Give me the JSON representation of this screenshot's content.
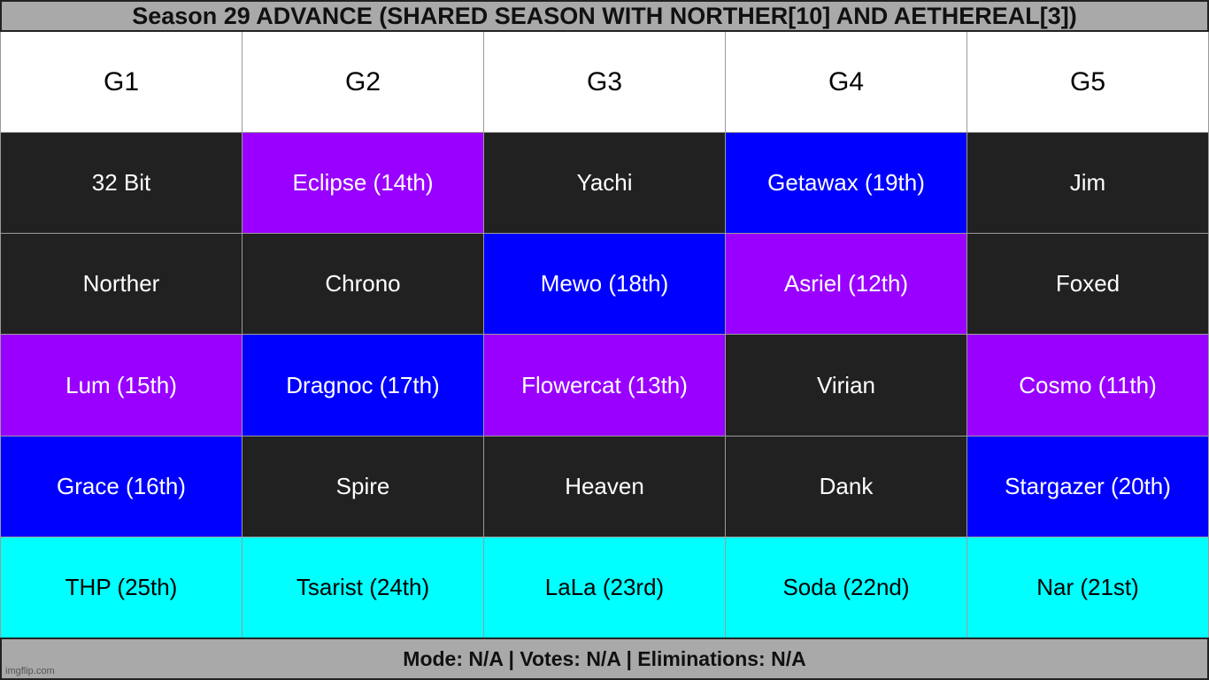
{
  "title": "Season 29 ADVANCE (SHARED SEASON WITH NORTHER[10] AND AETHEREAL[3])",
  "headers": [
    "G1",
    "G2",
    "G3",
    "G4",
    "G5"
  ],
  "rows": [
    [
      {
        "text": "32 Bit",
        "color": "dark"
      },
      {
        "text": "Eclipse (14th)",
        "color": "purple"
      },
      {
        "text": "Yachi",
        "color": "dark"
      },
      {
        "text": "Getawax (19th)",
        "color": "blue"
      },
      {
        "text": "Jim",
        "color": "dark"
      }
    ],
    [
      {
        "text": "Norther",
        "color": "dark"
      },
      {
        "text": "Chrono",
        "color": "dark"
      },
      {
        "text": "Mewo (18th)",
        "color": "blue"
      },
      {
        "text": "Asriel (12th)",
        "color": "purple"
      },
      {
        "text": "Foxed",
        "color": "dark"
      }
    ],
    [
      {
        "text": "Lum (15th)",
        "color": "purple"
      },
      {
        "text": "Dragnoc (17th)",
        "color": "blue"
      },
      {
        "text": "Flowercat (13th)",
        "color": "purple"
      },
      {
        "text": "Virian",
        "color": "dark"
      },
      {
        "text": "Cosmo (11th)",
        "color": "purple"
      }
    ],
    [
      {
        "text": "Grace (16th)",
        "color": "blue"
      },
      {
        "text": "Spire",
        "color": "dark"
      },
      {
        "text": "Heaven",
        "color": "dark"
      },
      {
        "text": "Dank",
        "color": "dark"
      },
      {
        "text": "Stargazer (20th)",
        "color": "blue"
      }
    ],
    [
      {
        "text": "THP (25th)",
        "color": "cyan"
      },
      {
        "text": "Tsarist (24th)",
        "color": "cyan"
      },
      {
        "text": "LaLa (23rd)",
        "color": "cyan"
      },
      {
        "text": "Soda (22nd)",
        "color": "cyan"
      },
      {
        "text": "Nar (21st)",
        "color": "cyan"
      }
    ]
  ],
  "colors": {
    "dark": "#212121",
    "purple": "#9900ff",
    "blue": "#0000ff",
    "cyan": "#00ffff",
    "bar": "#a9a9a9"
  },
  "footer": "Mode: N/A | Votes: N/A | Eliminations: N/A",
  "watermark": "imgflip.com"
}
